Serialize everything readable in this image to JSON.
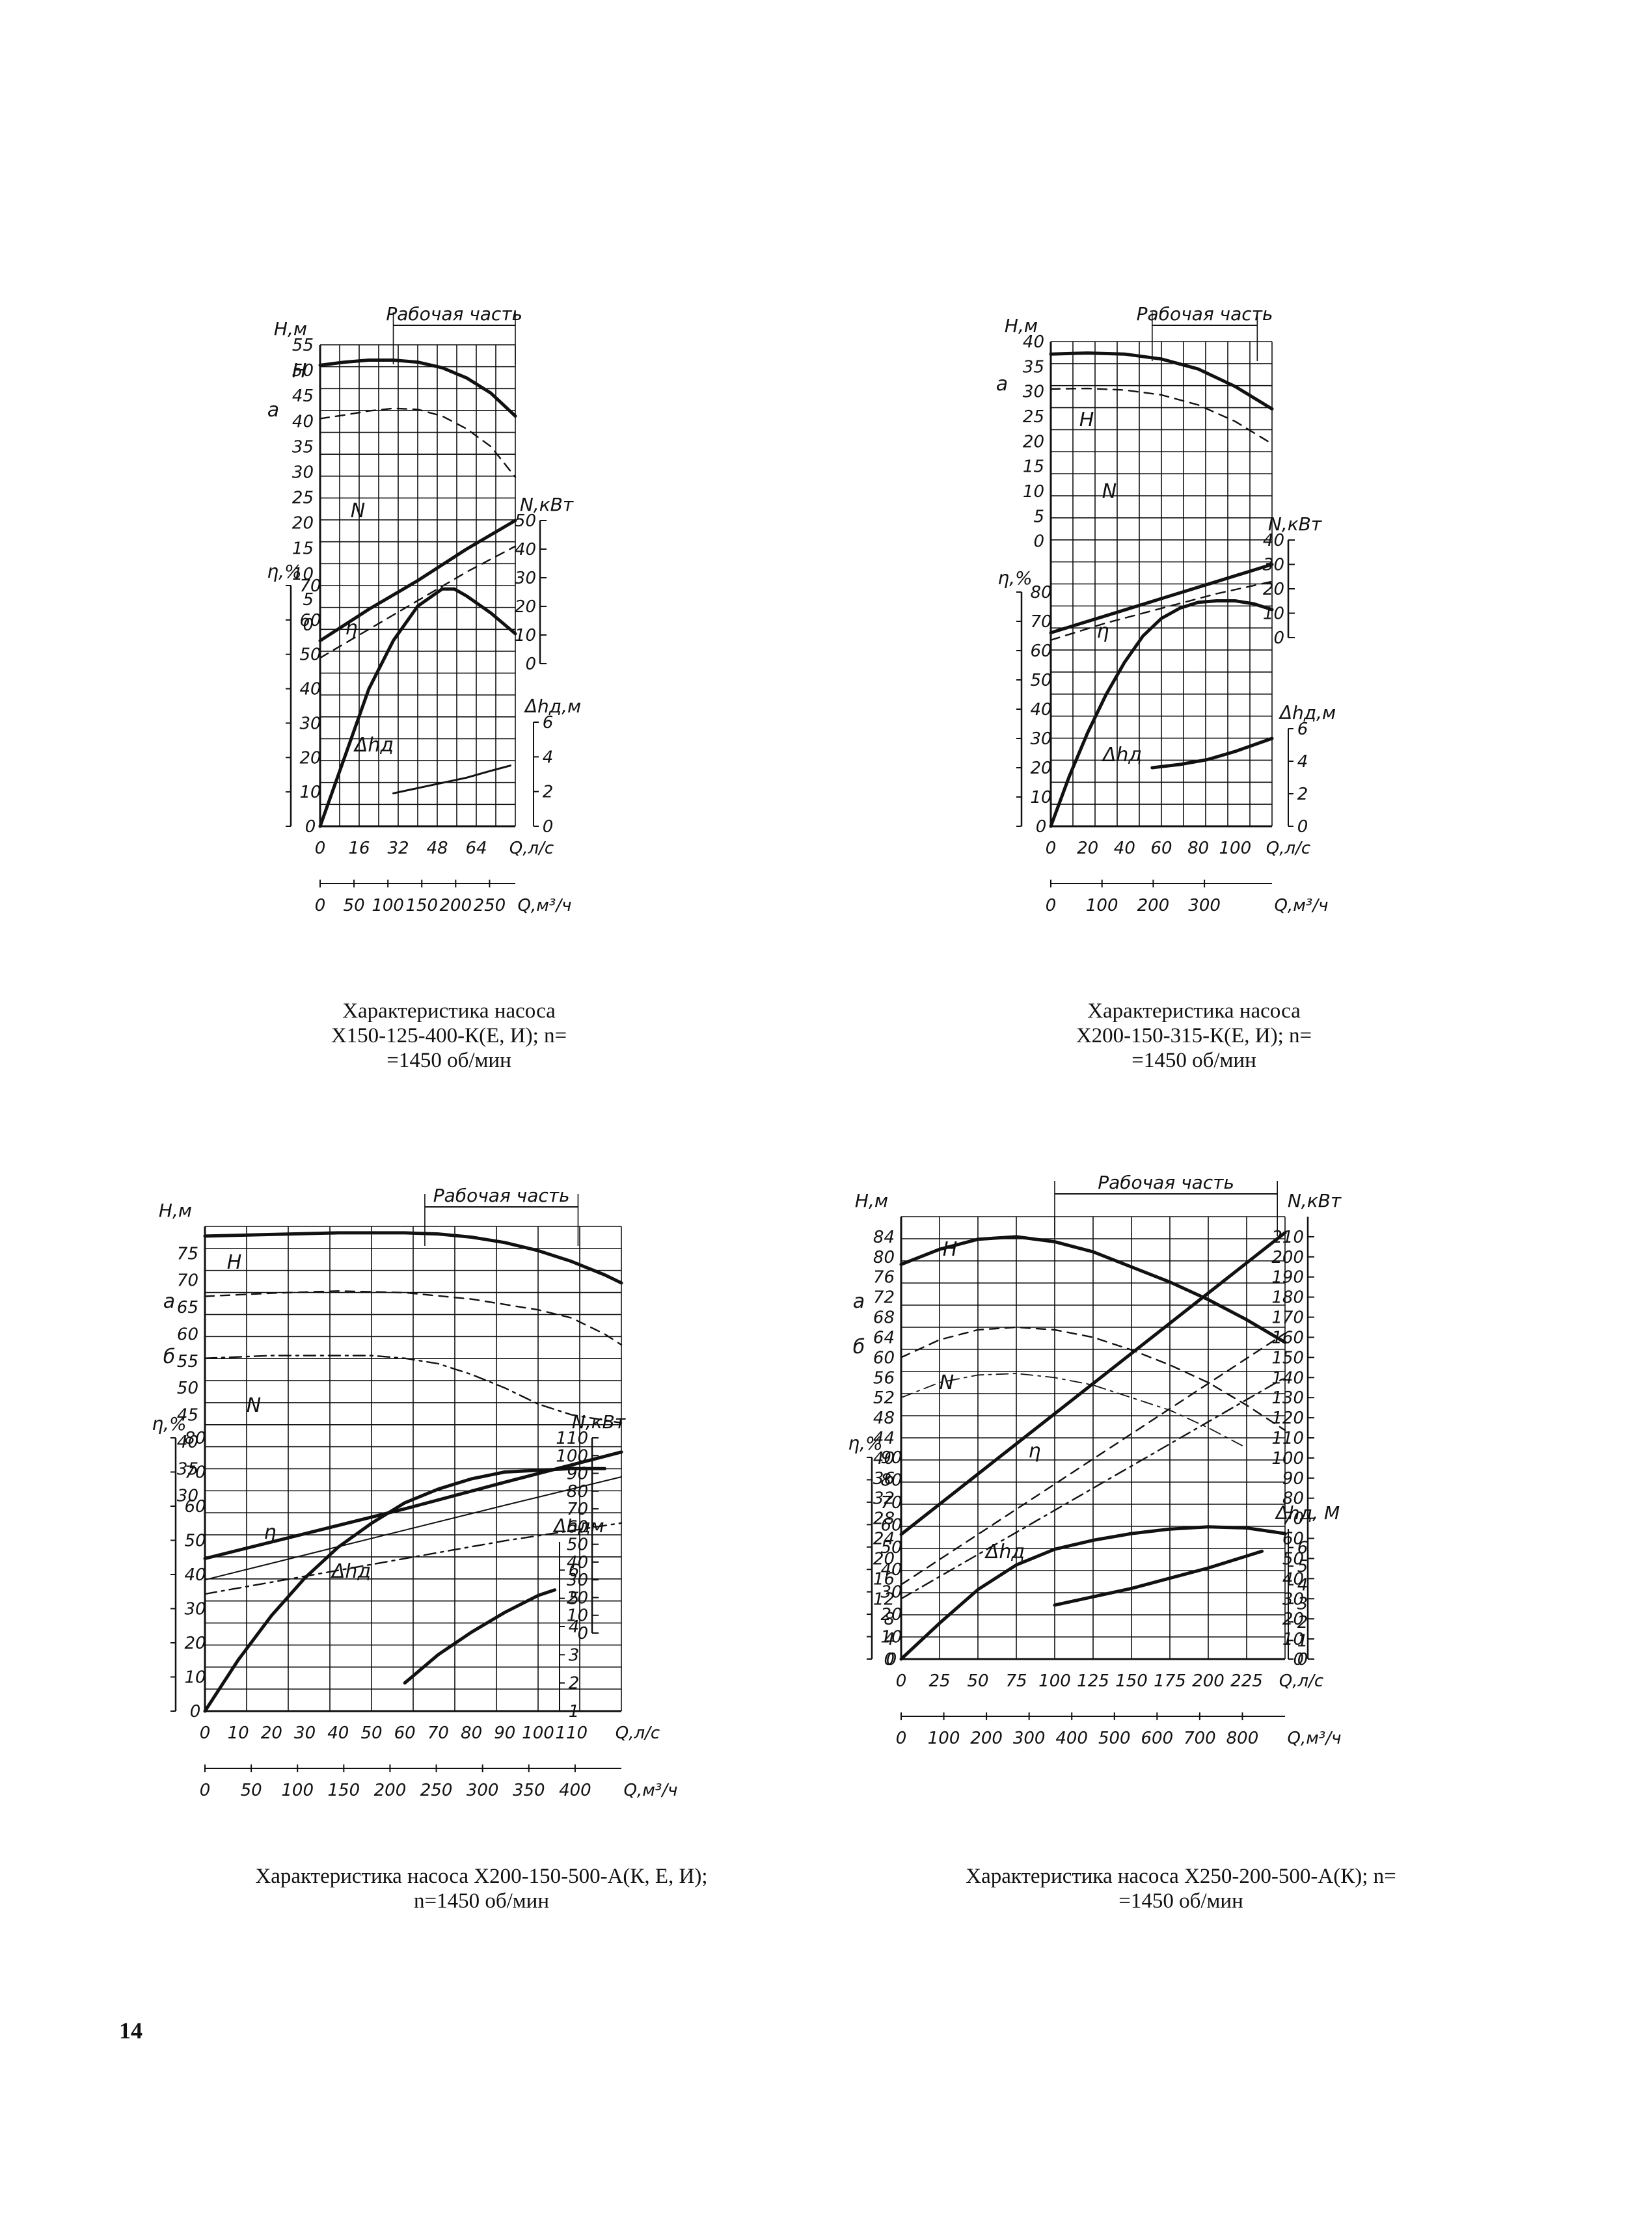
{
  "page_number": "14",
  "colors": {
    "ink": "#111111",
    "paper": "#ffffff"
  },
  "captions": [
    "Характеристика насоса\nХ150-125-400-К(Е, И); n=\n=1450 об/мин",
    "Характеристика насоса\nХ200-150-315-К(Е, И); n=\n=1450 об/мин",
    "Характеристика   насоса   Х200-150-500-А(К,   Е,   И);\nn=1450 об/мин",
    "Характеристика      насоса      Х250-200-500-А(К);    n=\n=1450 об/мин"
  ],
  "chart_data": [
    {
      "type": "line",
      "pump": "Х150-125-400-К(Е, И)",
      "work_zone_label": "Рабочая часть",
      "work_zone": [
        30,
        80
      ],
      "x_axis": {
        "label": "Q,л/с",
        "ticks": [
          0,
          16,
          32,
          48,
          64
        ],
        "range": [
          0,
          80
        ]
      },
      "x2_axis": {
        "label": "Q,м³/ч",
        "ticks": [
          0,
          50,
          100,
          150,
          200,
          250
        ],
        "range": [
          0,
          288
        ]
      },
      "y_head": {
        "label": "H,м",
        "ticks": [
          0,
          5,
          10,
          15,
          20,
          25,
          30,
          35,
          40,
          45,
          50,
          55
        ],
        "range": [
          0,
          55
        ]
      },
      "y_power": {
        "label": "N,кВт",
        "ticks": [
          0,
          10,
          20,
          30,
          40,
          50
        ],
        "range": [
          0,
          50
        ]
      },
      "y_eff": {
        "label": "η,%",
        "ticks": [
          0,
          10,
          20,
          30,
          40,
          50,
          60,
          70
        ],
        "range": [
          0,
          70
        ]
      },
      "y_npsh": {
        "label": "Δhд,м",
        "ticks": [
          0,
          2,
          4,
          6
        ],
        "range": [
          0,
          6
        ]
      },
      "curve_labels": [
        "H",
        "a",
        "N",
        "η",
        "Δhд"
      ],
      "series": [
        {
          "name": "H",
          "axis": "head",
          "style": "solid-thick",
          "x": [
            0,
            10,
            20,
            30,
            40,
            50,
            60,
            70,
            80
          ],
          "y": [
            51,
            51.6,
            52,
            52,
            51.6,
            50.5,
            48.5,
            45.5,
            41
          ]
        },
        {
          "name": "a",
          "axis": "head",
          "style": "dashed",
          "x": [
            0,
            10,
            20,
            30,
            40,
            50,
            60,
            70,
            80
          ],
          "y": [
            40.5,
            41.2,
            42,
            42.5,
            42.3,
            41,
            38.5,
            35,
            29
          ]
        },
        {
          "name": "N",
          "axis": "power",
          "style": "solid-thick",
          "x": [
            0,
            20,
            40,
            60,
            80
          ],
          "y": [
            8,
            19,
            29,
            40,
            50
          ]
        },
        {
          "name": "N-a",
          "axis": "power",
          "style": "dashed",
          "x": [
            0,
            20,
            40,
            60,
            80
          ],
          "y": [
            2,
            12,
            22,
            32,
            41
          ]
        },
        {
          "name": "η",
          "axis": "eff",
          "style": "solid-thick",
          "x": [
            0,
            10,
            20,
            30,
            40,
            50,
            55,
            60,
            70,
            80
          ],
          "y": [
            0,
            20,
            40,
            54,
            64,
            69,
            69,
            67,
            62,
            56
          ]
        },
        {
          "name": "Δhд",
          "axis": "npsh",
          "style": "solid",
          "x": [
            30,
            40,
            50,
            60,
            70,
            78
          ],
          "y": [
            1.9,
            2.2,
            2.5,
            2.8,
            3.2,
            3.5
          ]
        }
      ]
    },
    {
      "type": "line",
      "pump": "Х200-150-315-К(Е, И)",
      "work_zone_label": "Рабочая часть",
      "work_zone": [
        55,
        112
      ],
      "x_axis": {
        "label": "Q,л/с",
        "ticks": [
          0,
          20,
          40,
          60,
          80,
          100
        ],
        "range": [
          0,
          120
        ]
      },
      "x2_axis": {
        "label": "Q,м³/ч",
        "ticks": [
          0,
          100,
          200,
          300
        ],
        "range": [
          0,
          432
        ]
      },
      "y_head": {
        "label": "H,м",
        "ticks": [
          0,
          5,
          10,
          15,
          20,
          25,
          30,
          35,
          40
        ],
        "range": [
          -5,
          40
        ]
      },
      "y_power": {
        "label": "N,кВт",
        "ticks": [
          0,
          10,
          20,
          30,
          40
        ],
        "range": [
          0,
          40
        ]
      },
      "y_eff": {
        "label": "η,%",
        "ticks": [
          0,
          10,
          20,
          30,
          40,
          50,
          60,
          70,
          80
        ],
        "range": [
          0,
          80
        ]
      },
      "y_npsh": {
        "label": "Δhд,м",
        "ticks": [
          0,
          2,
          4,
          6
        ],
        "range": [
          0,
          6
        ]
      },
      "curve_labels": [
        "a",
        "H",
        "N",
        "η",
        "Δhд"
      ],
      "series": [
        {
          "name": "H",
          "axis": "head",
          "style": "solid-thick",
          "x": [
            0,
            20,
            40,
            60,
            80,
            100,
            120
          ],
          "y": [
            37.5,
            37.7,
            37.5,
            36.5,
            34.5,
            31,
            26.5
          ]
        },
        {
          "name": "a",
          "axis": "head",
          "style": "dashed",
          "x": [
            0,
            20,
            40,
            60,
            80,
            100,
            120
          ],
          "y": [
            30.5,
            30.6,
            30.3,
            29.3,
            27.3,
            24,
            19.5
          ]
        },
        {
          "name": "N",
          "axis": "power",
          "style": "solid-thick",
          "x": [
            0,
            30,
            60,
            90,
            120
          ],
          "y": [
            2,
            9,
            16,
            23,
            30
          ]
        },
        {
          "name": "N-a",
          "axis": "power",
          "style": "dashed",
          "x": [
            0,
            30,
            60,
            90,
            120
          ],
          "y": [
            -1,
            6,
            12,
            18,
            23
          ]
        },
        {
          "name": "η",
          "axis": "eff",
          "style": "solid-thick",
          "x": [
            0,
            10,
            20,
            30,
            40,
            50,
            60,
            70,
            80,
            90,
            100,
            110,
            120
          ],
          "y": [
            0,
            17,
            32,
            45,
            56,
            65,
            71,
            74.5,
            76.5,
            77,
            77,
            76,
            74
          ]
        },
        {
          "name": "Δhд",
          "axis": "npsh",
          "style": "solid-thick",
          "x": [
            55,
            70,
            85,
            100,
            115,
            120
          ],
          "y": [
            3.6,
            3.8,
            4.1,
            4.6,
            5.2,
            5.4
          ]
        }
      ]
    },
    {
      "type": "line",
      "pump": "Х200-150-500-А(К, Е, И)",
      "work_zone_label": "Рабочая часть",
      "work_zone": [
        66,
        112
      ],
      "x_axis": {
        "label": "Q,л/с",
        "ticks": [
          0,
          10,
          20,
          30,
          40,
          50,
          60,
          70,
          80,
          90,
          100,
          110
        ],
        "range": [
          0,
          125
        ]
      },
      "x2_axis": {
        "label": "Q,м³/ч",
        "ticks": [
          0,
          50,
          100,
          150,
          200,
          250,
          300,
          350,
          400
        ],
        "range": [
          0,
          450
        ]
      },
      "y_head": {
        "label": "H,м",
        "ticks": [
          30,
          35,
          40,
          45,
          50,
          55,
          60,
          65,
          70,
          75
        ],
        "range": [
          25,
          80
        ]
      },
      "y_power": {
        "label": "N,кВт",
        "ticks": [
          0,
          10,
          20,
          30,
          40,
          50,
          60,
          70,
          80,
          90,
          100,
          110
        ],
        "range": [
          0,
          110
        ]
      },
      "y_eff": {
        "label": "η,%",
        "ticks": [
          0,
          10,
          20,
          30,
          40,
          50,
          60,
          70,
          80
        ],
        "range": [
          0,
          80
        ]
      },
      "y_npsh": {
        "label": "Δhдм",
        "ticks": [
          1,
          2,
          3,
          4,
          5,
          6
        ],
        "range": [
          1,
          7
        ]
      },
      "curve_labels": [
        "H",
        "a",
        "б",
        "N",
        "η",
        "Δhд"
      ],
      "series": [
        {
          "name": "H",
          "axis": "head",
          "style": "solid-thick",
          "x": [
            0,
            20,
            40,
            60,
            70,
            80,
            90,
            100,
            110,
            120,
            125
          ],
          "y": [
            78.2,
            78.5,
            78.8,
            78.8,
            78.6,
            78,
            77,
            75.5,
            73.5,
            71,
            69.5
          ]
        },
        {
          "name": "a",
          "axis": "head",
          "style": "dashed",
          "x": [
            0,
            20,
            40,
            60,
            80,
            100,
            110,
            120,
            125
          ],
          "y": [
            67,
            67.6,
            68,
            67.7,
            66.5,
            64.5,
            63,
            60,
            58
          ]
        },
        {
          "name": "б",
          "axis": "head",
          "style": "dash-dot",
          "x": [
            0,
            20,
            40,
            50,
            60,
            70,
            80,
            90,
            100,
            110,
            125
          ],
          "y": [
            55.5,
            56,
            56,
            56,
            55.5,
            54.5,
            52.5,
            50,
            47,
            45,
            43.5
          ]
        },
        {
          "name": "N",
          "axis": "power",
          "style": "solid-thick",
          "x": [
            0,
            30,
            60,
            90,
            125
          ],
          "y": [
            42,
            56,
            70,
            85,
            102
          ]
        },
        {
          "name": "N-a",
          "axis": "power",
          "style": "solid-thin",
          "x": [
            0,
            30,
            60,
            90,
            125
          ],
          "y": [
            30,
            44,
            58,
            72,
            88
          ]
        },
        {
          "name": "N-б",
          "axis": "power",
          "style": "dash-dot",
          "x": [
            0,
            30,
            60,
            90,
            125
          ],
          "y": [
            22,
            32,
            42,
            52,
            62
          ]
        },
        {
          "name": "η",
          "axis": "eff",
          "style": "solid-thick",
          "x": [
            0,
            10,
            20,
            30,
            40,
            50,
            60,
            70,
            80,
            90,
            100,
            110,
            120
          ],
          "y": [
            0,
            15,
            28,
            39,
            48,
            55,
            61,
            65,
            68,
            70,
            70.5,
            71,
            71
          ]
        },
        {
          "name": "Δhд",
          "axis": "npsh",
          "style": "solid-thick",
          "x": [
            60,
            70,
            80,
            90,
            100,
            105
          ],
          "y": [
            2,
            3,
            3.8,
            4.5,
            5.1,
            5.3
          ]
        }
      ]
    },
    {
      "type": "line",
      "pump": "Х250-200-500-А(К)",
      "work_zone_label": "Рабочая часть",
      "work_zone": [
        100,
        245
      ],
      "x_axis": {
        "label": "Q,л/с",
        "ticks": [
          0,
          25,
          50,
          75,
          100,
          125,
          150,
          175,
          200,
          225
        ],
        "range": [
          0,
          250
        ]
      },
      "x2_axis": {
        "label": "Q,м³/ч",
        "ticks": [
          0,
          100,
          200,
          300,
          400,
          500,
          600,
          700,
          800
        ],
        "range": [
          0,
          900
        ]
      },
      "y_head": {
        "label": "H,м",
        "ticks": [
          0,
          4,
          8,
          12,
          16,
          20,
          24,
          28,
          32,
          36,
          40,
          44,
          48,
          52,
          56,
          60,
          64,
          68,
          72,
          76,
          80,
          84
        ],
        "range": [
          0,
          88
        ]
      },
      "y_power": {
        "label": "N,кВт",
        "ticks": [
          0,
          10,
          20,
          30,
          40,
          50,
          60,
          70,
          80,
          90,
          100,
          110,
          120,
          130,
          140,
          150,
          160,
          170,
          180,
          190,
          200,
          210
        ],
        "range": [
          0,
          220
        ]
      },
      "y_eff": {
        "label": "η,%",
        "ticks": [
          0,
          10,
          20,
          30,
          40,
          50,
          60,
          70,
          80,
          90
        ],
        "range": [
          0,
          90
        ]
      },
      "y_npsh": {
        "label": "Δhд, М",
        "ticks": [
          0,
          1,
          2,
          3,
          4,
          5,
          6
        ],
        "range": [
          0,
          7
        ]
      },
      "curve_labels": [
        "H",
        "a",
        "б",
        "N",
        "η",
        "Δhд"
      ],
      "series": [
        {
          "name": "H",
          "axis": "head",
          "style": "solid-thick",
          "x": [
            0,
            25,
            50,
            75,
            100,
            125,
            150,
            175,
            200,
            225,
            250
          ],
          "y": [
            78.5,
            81.5,
            83.5,
            84,
            83,
            81,
            78,
            75,
            71.5,
            67.5,
            63
          ]
        },
        {
          "name": "a",
          "axis": "head",
          "style": "dashed",
          "x": [
            0,
            25,
            50,
            75,
            100,
            125,
            150,
            175,
            200,
            225,
            250
          ],
          "y": [
            60,
            63.5,
            65.5,
            66,
            65.5,
            64,
            61.5,
            58.5,
            55,
            50.5,
            45.5
          ]
        },
        {
          "name": "б",
          "axis": "head",
          "style": "dash-dot-thin",
          "x": [
            0,
            25,
            50,
            75,
            100,
            125,
            150,
            175,
            200,
            225
          ],
          "y": [
            52,
            55,
            56.5,
            56.8,
            56,
            54.5,
            52,
            49.5,
            46,
            42
          ]
        },
        {
          "name": "N",
          "axis": "power",
          "style": "solid-thick",
          "x": [
            0,
            50,
            100,
            150,
            200,
            250
          ],
          "y": [
            62,
            92,
            122,
            152,
            182,
            212
          ]
        },
        {
          "name": "N-a",
          "axis": "power",
          "style": "dashed",
          "x": [
            0,
            50,
            100,
            150,
            200,
            250
          ],
          "y": [
            37,
            62,
            87,
            112,
            137,
            162
          ]
        },
        {
          "name": "N-б",
          "axis": "power",
          "style": "dash-dot",
          "x": [
            0,
            50,
            100,
            150,
            200,
            250
          ],
          "y": [
            30,
            52,
            74,
            96,
            118,
            140
          ]
        },
        {
          "name": "η",
          "axis": "eff",
          "style": "solid-thick",
          "x": [
            0,
            25,
            50,
            75,
            100,
            125,
            150,
            175,
            200,
            225,
            250
          ],
          "y": [
            0,
            16,
            31,
            42,
            49,
            53,
            56,
            58,
            59,
            58.5,
            56
          ]
        },
        {
          "name": "Δhд",
          "axis": "npsh",
          "style": "solid-thick",
          "x": [
            100,
            150,
            200,
            235
          ],
          "y": [
            2.9,
            3.8,
            4.9,
            5.8
          ]
        }
      ]
    }
  ]
}
